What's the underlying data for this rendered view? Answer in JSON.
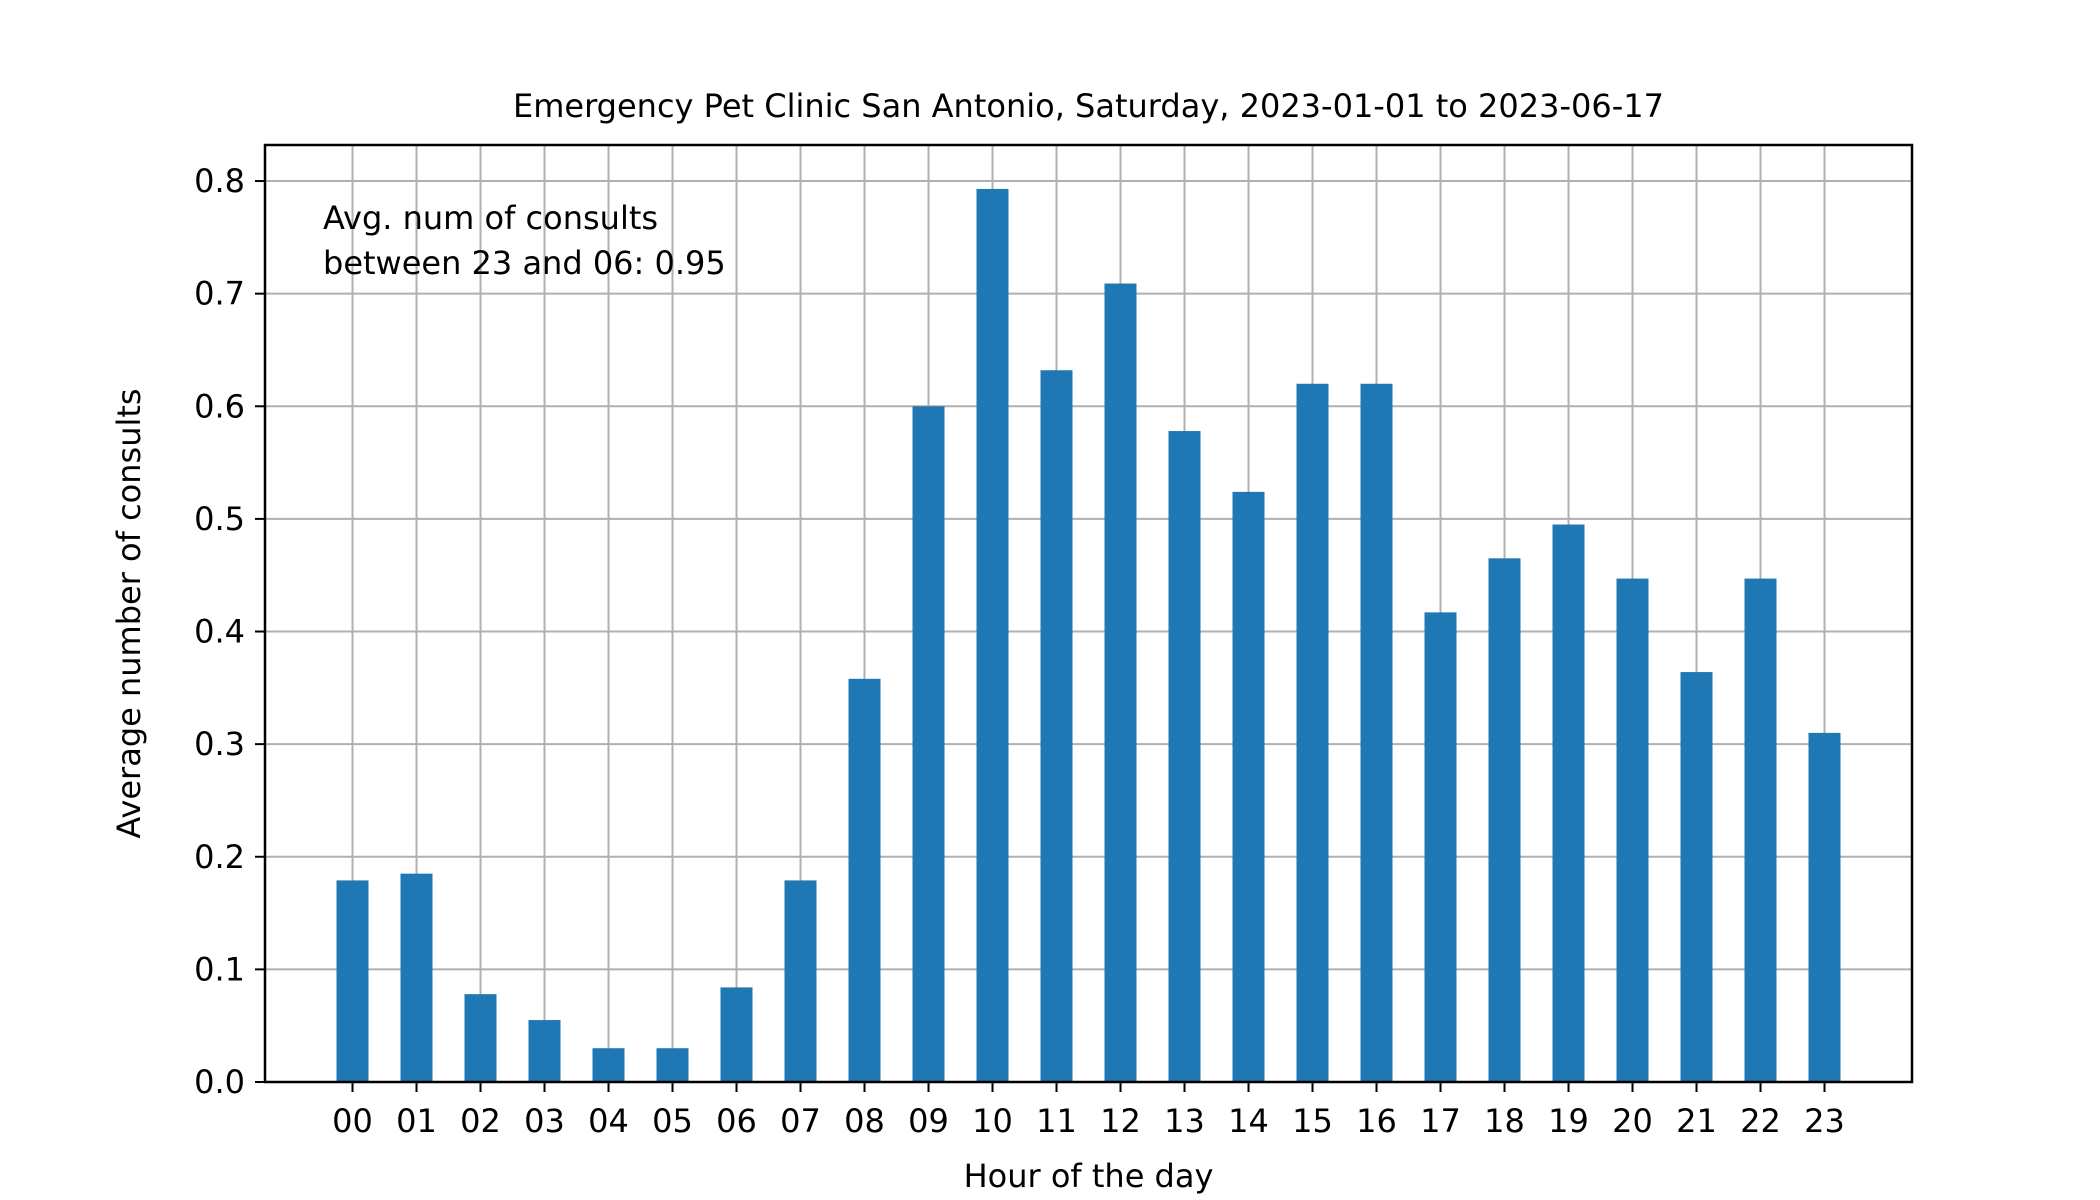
{
  "chart_data": {
    "type": "bar",
    "title": "Emergency Pet Clinic San Antonio, Saturday, 2023-01-01 to 2023-06-17",
    "xlabel": "Hour of the day",
    "ylabel": "Average number of consults",
    "categories": [
      "00",
      "01",
      "02",
      "03",
      "04",
      "05",
      "06",
      "07",
      "08",
      "09",
      "10",
      "11",
      "12",
      "13",
      "14",
      "15",
      "16",
      "17",
      "18",
      "19",
      "20",
      "21",
      "22",
      "23"
    ],
    "values": [
      0.179,
      0.185,
      0.078,
      0.055,
      0.03,
      0.03,
      0.084,
      0.179,
      0.358,
      0.6,
      0.793,
      0.632,
      0.709,
      0.578,
      0.524,
      0.62,
      0.62,
      0.417,
      0.465,
      0.495,
      0.447,
      0.364,
      0.447,
      0.31
    ],
    "ylim": [
      0,
      0.832
    ],
    "yticks": [
      "0.0",
      "0.1",
      "0.2",
      "0.3",
      "0.4",
      "0.5",
      "0.6",
      "0.7",
      "0.8"
    ],
    "grid": true,
    "bar_color": "#1f77b4",
    "annotation": {
      "line1": "Avg. num of consults",
      "line2": "between 23 and 06: 0.95"
    }
  }
}
